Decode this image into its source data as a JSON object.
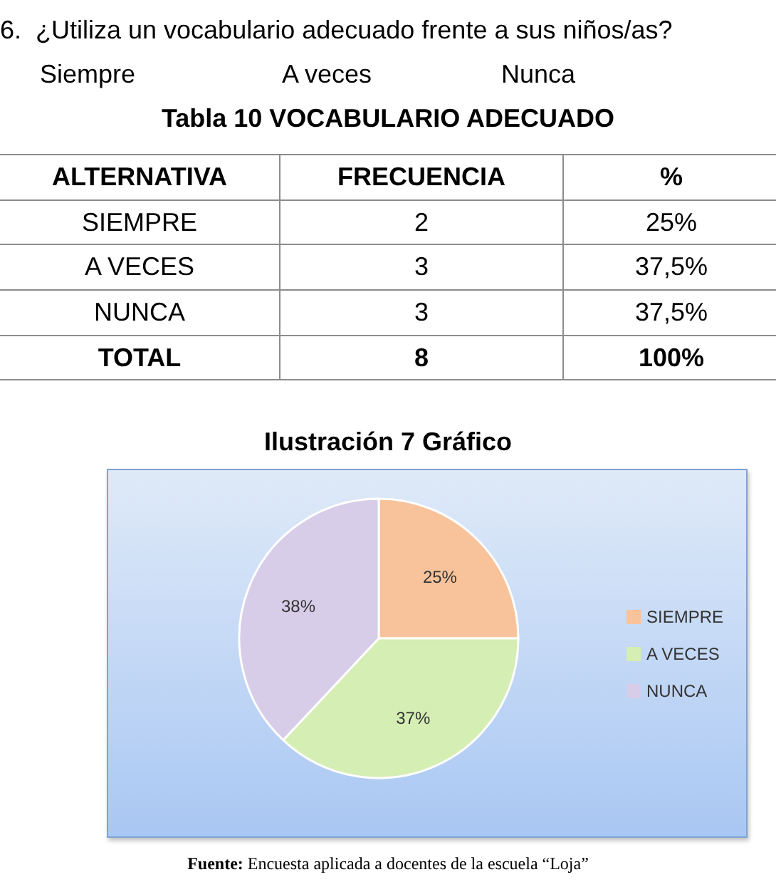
{
  "chart_data": [
    {
      "type": "other",
      "title": "Tabla 10 VOCABULARIO ADECUADO",
      "annotations": [
        "6.  ¿Utiliza un vocabulario adecuado frente a sus niños/as?",
        "Siempre",
        "A veces",
        "Nunca"
      ],
      "xlabel": "ALTERNATIVA",
      "categories": [
        "SIEMPRE",
        "A VECES",
        "NUNCA",
        "TOTAL"
      ],
      "data_labels": true,
      "series": [
        {
          "name": "FRECUENCIA",
          "values": [
            2,
            3,
            3,
            8
          ]
        },
        {
          "name": "%",
          "values": [
            25,
            37.5,
            37.5,
            100
          ],
          "value_labels": [
            "25%",
            "37,5%",
            "37,5%",
            "100%"
          ]
        }
      ]
    },
    {
      "type": "pie",
      "title": "Ilustración 7 Gráfico",
      "categories": [
        "SIEMPRE",
        "A VECES",
        "NUNCA"
      ],
      "values": [
        25,
        37,
        38
      ],
      "colors": [
        "#f8c39a",
        "#d4eeb3",
        "#d8cde8"
      ],
      "value_labels": [
        "25%",
        "37%",
        "38%"
      ],
      "legend": "right",
      "annotations": [
        "Fuente: Encuesta aplicada a docentes de la escuela “Loja”"
      ]
    }
  ]
}
